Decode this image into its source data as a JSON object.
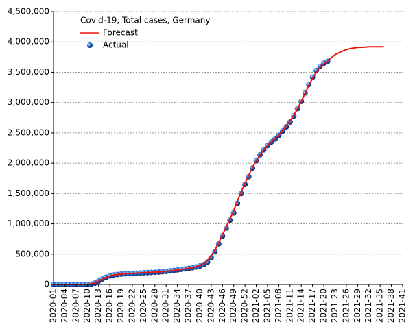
{
  "chart_data": {
    "type": "line",
    "title": "Covid-19, Total cases, Germany",
    "categories": [
      "2020-01",
      null,
      null,
      "2020-04",
      null,
      null,
      "2020-07",
      null,
      null,
      "2020-10",
      null,
      null,
      "2020-13",
      null,
      null,
      "2020-16",
      null,
      null,
      "2020-19",
      null,
      null,
      "2020-22",
      null,
      null,
      "2020-25",
      null,
      null,
      "2020-28",
      null,
      null,
      "2020-31",
      null,
      null,
      "2020-34",
      null,
      null,
      "2020-37",
      null,
      null,
      "2020-40",
      null,
      null,
      "2020-43",
      null,
      null,
      "2020-46",
      null,
      null,
      "2020-49",
      null,
      null,
      "2020-52",
      null,
      null,
      "2021-02",
      null,
      null,
      "2021-05",
      null,
      null,
      "2021-08",
      null,
      null,
      "2021-11",
      null,
      null,
      "2021-14",
      null,
      null,
      "2021-17",
      null,
      null,
      "2021-20",
      null,
      null,
      "2021-23",
      null,
      null,
      "2021-26",
      null,
      null,
      "2021-29",
      null,
      null,
      "2021-32",
      null,
      null,
      "2021-35",
      null,
      null,
      "2021-38",
      null,
      null,
      "2021-41"
    ],
    "series": [
      {
        "name": "Forecast",
        "style": "line",
        "color": "#e8140a",
        "values": [
          0,
          0,
          0,
          0,
          0,
          0,
          0,
          0,
          200,
          2000,
          8000,
          25000,
          55000,
          88000,
          118000,
          140000,
          155000,
          165000,
          172000,
          177000,
          181000,
          184000,
          187000,
          190000,
          193000,
          196000,
          199000,
          202000,
          206000,
          211000,
          217000,
          224000,
          232000,
          240000,
          248000,
          257000,
          267000,
          278000,
          292000,
          312000,
          345000,
          395000,
          470000,
          570000,
          690000,
          820000,
          950000,
          1080000,
          1220000,
          1380000,
          1530000,
          1670000,
          1800000,
          1930000,
          2040000,
          2140000,
          2220000,
          2290000,
          2350000,
          2410000,
          2470000,
          2540000,
          2620000,
          2700000,
          2790000,
          2900000,
          3020000,
          3150000,
          3280000,
          3400000,
          3500000,
          3580000,
          3640000,
          3690000,
          3740000,
          3790000,
          3820000,
          3850000,
          3875000,
          3890000,
          3900000,
          3910000,
          3910000,
          3915000,
          3920000,
          3920000,
          3920000,
          3920000,
          3920000,
          null,
          null,
          null,
          null,
          null
        ]
      },
      {
        "name": "Actual",
        "style": "markers",
        "color": "#1a5fd6",
        "values": [
          0,
          0,
          0,
          0,
          0,
          0,
          0,
          0,
          100,
          1000,
          5000,
          22000,
          55000,
          90000,
          120000,
          140000,
          155000,
          164000,
          171000,
          176000,
          180000,
          182000,
          185000,
          188000,
          192000,
          195000,
          198000,
          201000,
          205000,
          210000,
          216000,
          224000,
          232000,
          240000,
          248000,
          256000,
          265000,
          275000,
          288000,
          305000,
          330000,
          370000,
          440000,
          540000,
          670000,
          800000,
          930000,
          1060000,
          1180000,
          1340000,
          1500000,
          1650000,
          1780000,
          1920000,
          2040000,
          2140000,
          2220000,
          2290000,
          2350000,
          2400000,
          2460000,
          2530000,
          2600000,
          2680000,
          2780000,
          2900000,
          3020000,
          3160000,
          3300000,
          3420000,
          3530000,
          3600000,
          3650000,
          3680000,
          null,
          null,
          null,
          null,
          null,
          null,
          null,
          null,
          null,
          null,
          null,
          null,
          null,
          null,
          null,
          null,
          null,
          null,
          null,
          null
        ]
      }
    ],
    "ylim": [
      0,
      4500000
    ],
    "yticks": [
      0,
      {
        "value": 500000,
        "label": "500,000"
      },
      {
        "value": 1000000,
        "label": "1,000,000"
      },
      {
        "value": 1500000,
        "label": "1,500,000"
      },
      {
        "value": 2000000,
        "label": "2,000,000"
      },
      {
        "value": 2500000,
        "label": "2,500,000"
      },
      {
        "value": 3000000,
        "label": "3,000,000"
      },
      {
        "value": 3500000,
        "label": "3,500,000"
      },
      {
        "value": 4000000,
        "label": "4,000,000"
      },
      {
        "value": 4500000,
        "label": "4,500,000"
      }
    ],
    "grid": true,
    "legend": "upper left"
  }
}
